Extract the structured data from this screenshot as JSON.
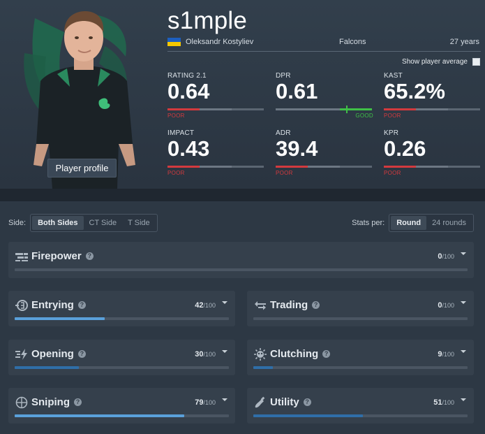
{
  "player": {
    "nickname": "s1mple",
    "real_name": "Oleksandr Kostyliev",
    "team": "Falcons",
    "age": "27 years",
    "profile_button": "Player profile",
    "show_average_label": "Show player average"
  },
  "stats": [
    {
      "label": "RATING 2.1",
      "value": "0.64",
      "rating": "POOR"
    },
    {
      "label": "DPR",
      "value": "0.61",
      "rating": "GOOD"
    },
    {
      "label": "KAST",
      "value": "65.2%",
      "rating": "POOR"
    },
    {
      "label": "IMPACT",
      "value": "0.43",
      "rating": "POOR"
    },
    {
      "label": "ADR",
      "value": "39.4",
      "rating": "POOR"
    },
    {
      "label": "KPR",
      "value": "0.26",
      "rating": "POOR"
    }
  ],
  "side": {
    "label": "Side:",
    "options": [
      "Both Sides",
      "CT Side",
      "T Side"
    ],
    "selected": "Both Sides"
  },
  "stats_per": {
    "label": "Stats per:",
    "options": [
      "Round",
      "24 rounds"
    ],
    "selected": "Round"
  },
  "categories": [
    {
      "name": "Firepower",
      "score": "0",
      "out_of": "/100",
      "progress": 0,
      "icon": "firepower-icon"
    },
    {
      "name": "Entrying",
      "score": "42",
      "out_of": "/100",
      "progress": 0.42,
      "icon": "entrying-icon"
    },
    {
      "name": "Trading",
      "score": "0",
      "out_of": "/100",
      "progress": 0,
      "icon": "trading-icon"
    },
    {
      "name": "Opening",
      "score": "30",
      "out_of": "/100",
      "progress": 0.3,
      "icon": "opening-icon"
    },
    {
      "name": "Clutching",
      "score": "9",
      "out_of": "/100",
      "progress": 0.09,
      "icon": "clutching-icon"
    },
    {
      "name": "Sniping",
      "score": "79",
      "out_of": "/100",
      "progress": 0.79,
      "icon": "sniping-icon"
    },
    {
      "name": "Utility",
      "score": "51",
      "out_of": "/100",
      "progress": 0.51,
      "icon": "utility-icon"
    }
  ],
  "colors": {
    "poor": "#d33a3e",
    "good": "#3fc047",
    "bar_light": "#5aa0da",
    "bar_dark": "#2f6ea8",
    "flag_blue": "#1d5fbf",
    "flag_yellow": "#f5c800"
  }
}
